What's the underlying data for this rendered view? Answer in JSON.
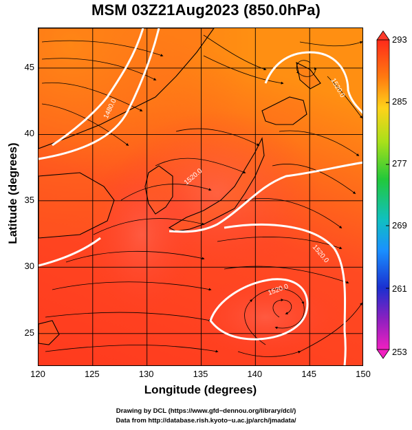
{
  "title": "MSM 03Z21Aug2023 (850.0hPa)",
  "map": {
    "xlabel": "Longitude (degrees)",
    "ylabel": "Latitude  (degrees)",
    "x_ticks": [
      "120",
      "125",
      "130",
      "135",
      "140",
      "145",
      "150"
    ],
    "y_ticks": [
      "45",
      "40",
      "35",
      "30",
      "25"
    ],
    "contour_labels": [
      "1520.0",
      "1480.0",
      "1520.0",
      "1520.0",
      "1520.0",
      "1520.0"
    ],
    "colors": {
      "warm_low": "#ff3a1e",
      "warm_high": "#ff8b16",
      "contour": "#ffffff",
      "coast": "#000000"
    }
  },
  "colorbar": {
    "ticks": [
      "293",
      "285",
      "277",
      "269",
      "261",
      "253"
    ]
  },
  "credits": {
    "line1": "Drawing by DCL (https://www.gfd−dennou.org/library/dcl/)",
    "line2": "Data from http://database.rish.kyoto−u.ac.jp/arch/jmadata/"
  }
}
